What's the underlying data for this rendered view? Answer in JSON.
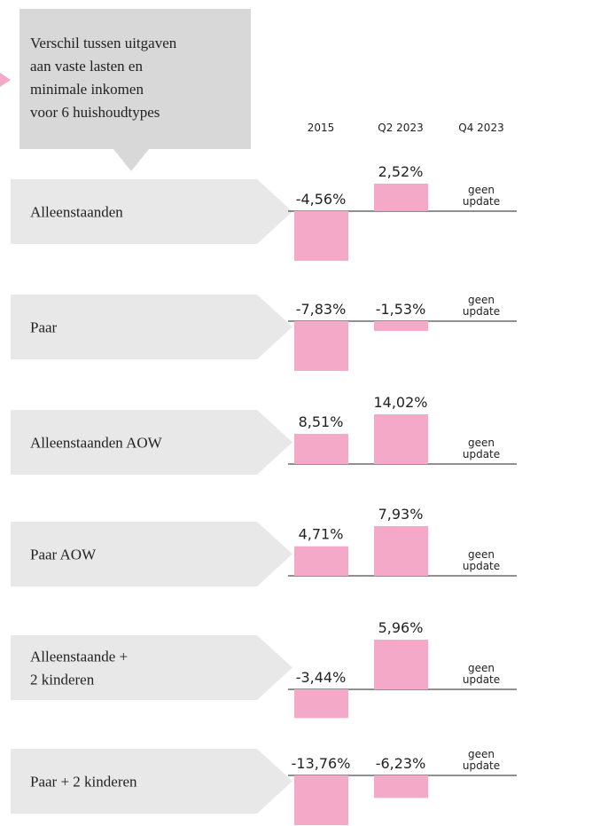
{
  "chart_data": {
    "type": "bar",
    "title": [
      "Verschil tussen uitgaven",
      "aan vaste lasten en",
      "minimale inkomen",
      "voor 6 huishoudtypes"
    ],
    "categories": [
      [
        "Alleenstaanden"
      ],
      [
        "Paar"
      ],
      [
        "Alleenstaanden AOW"
      ],
      [
        "Paar AOW"
      ],
      [
        "Alleenstaande +",
        "2 kinderen"
      ],
      [
        "Paar + 2 kinderen"
      ]
    ],
    "series": [
      {
        "name": "2015",
        "color": "#f4a9c9",
        "values": [
          -4.56,
          -7.83,
          8.51,
          4.71,
          -3.44,
          -13.76
        ],
        "value_labels": [
          "-4,56%",
          "-7,83%",
          "8,51%",
          "4,71%",
          "-3,44%",
          "-13,76%"
        ]
      },
      {
        "name": "Q2 2023",
        "color": "#f4a9c9",
        "values": [
          2.52,
          -1.53,
          14.02,
          7.93,
          5.96,
          -6.23
        ],
        "value_labels": [
          "2,52%",
          "-1,53%",
          "14,02%",
          "7,93%",
          "5,96%",
          "-6,23%"
        ]
      },
      {
        "name": "Q4 2023",
        "color": "#f4a9c9",
        "values": [
          null,
          null,
          null,
          null,
          null,
          null
        ],
        "value_labels": [
          [
            "geen",
            "update"
          ],
          [
            "geen",
            "update"
          ],
          [
            "geen",
            "update"
          ],
          [
            "geen",
            "update"
          ],
          [
            "geen",
            "update"
          ],
          [
            "geen",
            "update"
          ]
        ]
      }
    ]
  }
}
